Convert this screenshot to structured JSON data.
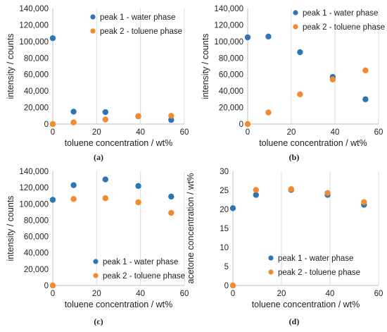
{
  "colors": {
    "series1": "#2E75B6",
    "series2": "#F28A30",
    "grid": "#D9D9D9",
    "axis": "#BFBFBF"
  },
  "chart_data": [
    {
      "type": "scatter",
      "panel_label": "(a)",
      "xlabel": "toluene concentration / wt%",
      "ylabel": "intensity / counts",
      "xlim": [
        0,
        60
      ],
      "ylim": [
        0,
        140000
      ],
      "xticks": [
        "0",
        "20",
        "40",
        "60"
      ],
      "yticks": [
        "0",
        "20,000",
        "40,000",
        "60,000",
        "80,000",
        "100,000",
        "120,000",
        "140,000"
      ],
      "legend": "top-right",
      "grid": "vertical",
      "series": [
        {
          "name": "peak 1 - water phase",
          "x": [
            0,
            9.5,
            24,
            39,
            54
          ],
          "y": [
            104000,
            15000,
            14500,
            9500,
            5000
          ]
        },
        {
          "name": "peak 2 - toluene phase",
          "x": [
            0,
            9.5,
            24,
            39,
            54
          ],
          "y": [
            0,
            2000,
            5500,
            9500,
            10000
          ]
        }
      ]
    },
    {
      "type": "scatter",
      "panel_label": "(b)",
      "xlabel": "toluene concentration / wt%",
      "ylabel": "intensity / counts",
      "xlim": [
        0,
        60
      ],
      "ylim": [
        0,
        140000
      ],
      "xticks": [
        "0",
        "20",
        "40",
        "60"
      ],
      "yticks": [
        "0",
        "20,000",
        "40,000",
        "60,000",
        "80,000",
        "100,000",
        "120,000",
        "140,000"
      ],
      "legend": "top-right",
      "grid": "vertical",
      "series": [
        {
          "name": "peak 1 - water phase",
          "x": [
            0,
            9.5,
            24,
            39,
            54
          ],
          "y": [
            105000,
            106000,
            87000,
            57000,
            30000
          ]
        },
        {
          "name": "peak 2 - toluene phase",
          "x": [
            0,
            9.5,
            24,
            39,
            54
          ],
          "y": [
            0,
            14000,
            36000,
            54000,
            65000
          ]
        }
      ]
    },
    {
      "type": "scatter",
      "panel_label": "(c)",
      "xlabel": "toluene concentration / wt%",
      "ylabel": "intensity / counts",
      "xlim": [
        0,
        60
      ],
      "ylim": [
        0,
        140000
      ],
      "xticks": [
        "0",
        "20",
        "40",
        "60"
      ],
      "yticks": [
        "0",
        "20,000",
        "40,000",
        "60,000",
        "80,000",
        "100,000",
        "120,000",
        "140,000"
      ],
      "legend": "bottom-right",
      "grid": "vertical",
      "series": [
        {
          "name": "peak 1 - water phase",
          "x": [
            0,
            9.5,
            24,
            39,
            54
          ],
          "y": [
            105000,
            123000,
            130000,
            122000,
            109000
          ]
        },
        {
          "name": "peak 2 - toluene phase",
          "x": [
            0,
            9.5,
            24,
            39,
            54
          ],
          "y": [
            0,
            106000,
            107000,
            102000,
            89000
          ]
        }
      ]
    },
    {
      "type": "scatter",
      "panel_label": "(d)",
      "xlabel": "toluene concentration / wt%",
      "ylabel": "acetone concentration / wt%",
      "xlim": [
        0,
        60
      ],
      "ylim": [
        0,
        30
      ],
      "xticks": [
        "0",
        "20",
        "40",
        "60"
      ],
      "yticks": [
        "0",
        "5",
        "10",
        "15",
        "20",
        "25",
        "30"
      ],
      "legend": "bottom-right",
      "grid": "vertical",
      "series": [
        {
          "name": "peak 1 - water phase",
          "x": [
            0,
            9.5,
            24,
            39,
            54
          ],
          "y": [
            20.3,
            23.8,
            25.1,
            23.8,
            21.2
          ]
        },
        {
          "name": "peak 2 - toluene phase",
          "x": [
            0,
            9.5,
            24,
            39,
            54
          ],
          "y": [
            0,
            25.1,
            25.3,
            24.3,
            21.9
          ]
        }
      ]
    }
  ]
}
